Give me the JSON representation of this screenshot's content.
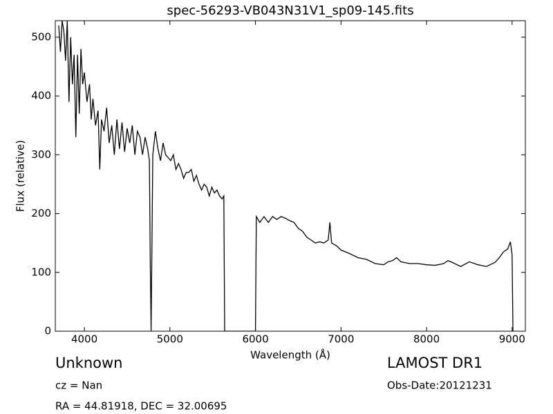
{
  "chart_data": {
    "type": "line",
    "title": "spec-56293-VB043N31V1_sp09-145.fits",
    "xlabel": "Wavelength (Å)",
    "ylabel": "Flux (relative)",
    "annotations": [
      "Unknown",
      "LAMOST DR1",
      "cz = Nan",
      "Obs-Date:20121231",
      "RA = 44.81918, DEC = 32.00695"
    ],
    "color": "#000000",
    "xlim": [
      3660,
      9155
    ],
    "ylim": [
      0,
      528
    ],
    "xticks": [
      4000,
      5000,
      6000,
      7000,
      8000,
      9000
    ],
    "yticks": [
      0,
      100,
      200,
      300,
      400,
      500
    ],
    "x": [
      3700,
      3720,
      3740,
      3760,
      3780,
      3800,
      3820,
      3840,
      3860,
      3880,
      3900,
      3920,
      3940,
      3960,
      3980,
      4000,
      4030,
      4060,
      4080,
      4100,
      4130,
      4160,
      4180,
      4200,
      4230,
      4260,
      4290,
      4320,
      4350,
      4380,
      4410,
      4440,
      4470,
      4500,
      4530,
      4560,
      4590,
      4620,
      4650,
      4680,
      4710,
      4740,
      4760,
      4770,
      4780,
      4790,
      4800,
      4830,
      4860,
      4890,
      4920,
      4950,
      4980,
      5010,
      5040,
      5070,
      5100,
      5130,
      5160,
      5190,
      5220,
      5250,
      5280,
      5310,
      5340,
      5370,
      5400,
      5430,
      5460,
      5490,
      5520,
      5550,
      5580,
      5610,
      5630,
      5640,
      5800,
      6000,
      6010,
      6050,
      6100,
      6150,
      6200,
      6250,
      6300,
      6350,
      6400,
      6450,
      6500,
      6550,
      6600,
      6650,
      6700,
      6750,
      6800,
      6850,
      6870,
      6890,
      6950,
      7000,
      7100,
      7200,
      7300,
      7400,
      7500,
      7550,
      7600,
      7650,
      7700,
      7800,
      7900,
      8000,
      8100,
      8200,
      8250,
      8300,
      8400,
      8500,
      8600,
      8700,
      8800,
      8850,
      8900,
      8950,
      8980,
      9000,
      9010
    ],
    "values": [
      520,
      475,
      528,
      510,
      460,
      528,
      390,
      500,
      420,
      470,
      330,
      470,
      370,
      480,
      420,
      440,
      390,
      420,
      360,
      395,
      350,
      375,
      275,
      360,
      340,
      380,
      320,
      350,
      300,
      360,
      310,
      355,
      305,
      345,
      320,
      350,
      300,
      340,
      330,
      300,
      330,
      310,
      290,
      120,
      0,
      150,
      300,
      340,
      310,
      290,
      320,
      300,
      295,
      290,
      300,
      275,
      285,
      275,
      260,
      270,
      270,
      275,
      255,
      265,
      250,
      240,
      250,
      245,
      230,
      245,
      235,
      240,
      230,
      225,
      230,
      0,
      0,
      0,
      195,
      185,
      195,
      185,
      195,
      190,
      195,
      192,
      188,
      185,
      175,
      170,
      160,
      155,
      150,
      152,
      150,
      155,
      185,
      150,
      145,
      138,
      132,
      125,
      122,
      115,
      113,
      118,
      120,
      125,
      118,
      115,
      115,
      113,
      112,
      115,
      120,
      117,
      110,
      118,
      113,
      110,
      117,
      125,
      135,
      140,
      152,
      130,
      0
    ]
  }
}
